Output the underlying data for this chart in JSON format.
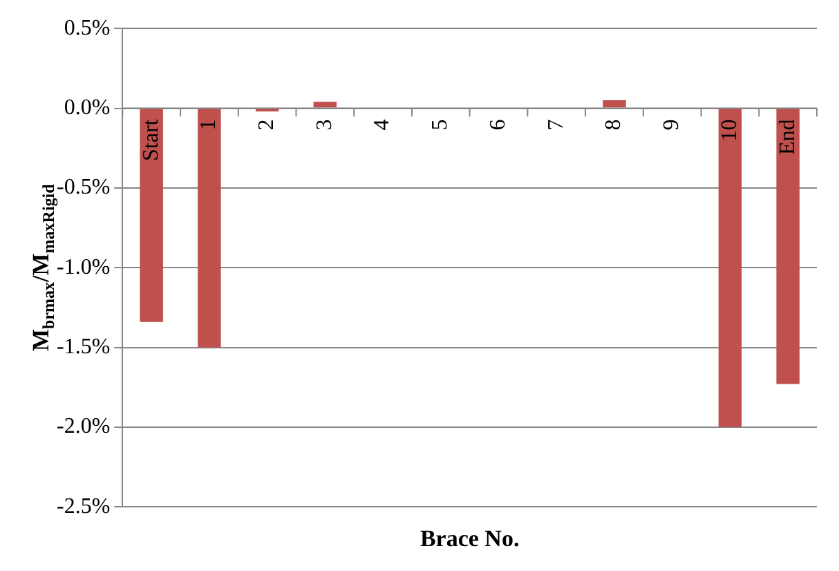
{
  "chart_data": {
    "type": "bar",
    "xlabel": "Brace No.",
    "ylabel": "M$_{brmax}$/M$_{maxRigid}$",
    "categories": [
      "Start",
      "1",
      "2",
      "3",
      "4",
      "5",
      "6",
      "7",
      "8",
      "9",
      "10",
      "End"
    ],
    "series": [
      {
        "color": "#c0504d",
        "values": [
          -1.34,
          -1.5,
          -0.02,
          0.04,
          0,
          0,
          0,
          0,
          0.05,
          0,
          -2.0,
          -1.73
        ]
      }
    ],
    "ylim": [
      -2.5,
      0.5
    ],
    "yticks": [
      {
        "value": -2.5,
        "label": "-2.5%"
      },
      {
        "value": -2.0,
        "label": "-2.0%"
      },
      {
        "value": -1.5,
        "label": "-1.5%"
      },
      {
        "value": -1.0,
        "label": "-1.0%"
      },
      {
        "value": -0.5,
        "label": "-0.5%"
      },
      {
        "value": 0,
        "label": "0.0%"
      },
      {
        "value": 0.5,
        "label": "0.5%"
      }
    ],
    "grid": "y",
    "legend": false
  }
}
